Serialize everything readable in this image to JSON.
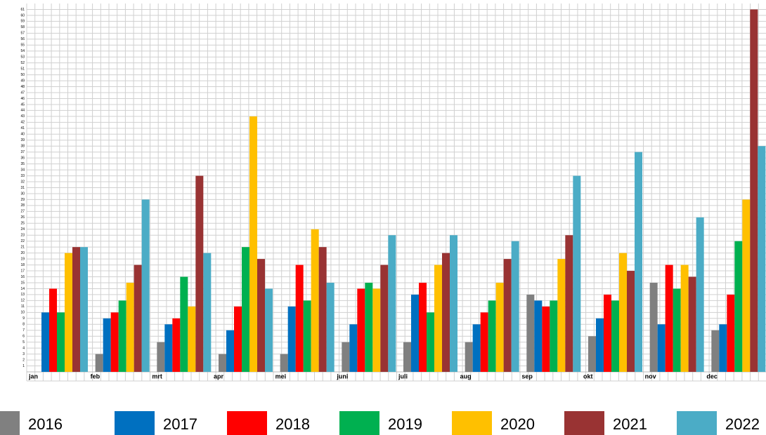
{
  "chart_data": {
    "type": "bar",
    "categories": [
      "jan",
      "feb",
      "mrt",
      "apr",
      "mei",
      "juni",
      "juli",
      "aug",
      "sep",
      "okt",
      "nov",
      "dec"
    ],
    "series": [
      {
        "name": "2016",
        "color": "#808080",
        "values": [
          null,
          3,
          5,
          3,
          3,
          5,
          5,
          5,
          13,
          6,
          15,
          7
        ]
      },
      {
        "name": "2017",
        "color": "#0070c0",
        "values": [
          10,
          9,
          8,
          7,
          11,
          8,
          13,
          8,
          12,
          9,
          8,
          8
        ]
      },
      {
        "name": "2018",
        "color": "#ff0000",
        "values": [
          14,
          10,
          9,
          11,
          18,
          14,
          15,
          10,
          11,
          13,
          18,
          13
        ]
      },
      {
        "name": "2019",
        "color": "#00b050",
        "values": [
          10,
          12,
          16,
          21,
          12,
          15,
          10,
          12,
          12,
          12,
          14,
          22
        ]
      },
      {
        "name": "2020",
        "color": "#ffc000",
        "values": [
          20,
          15,
          11,
          43,
          24,
          14,
          18,
          15,
          19,
          20,
          18,
          29
        ]
      },
      {
        "name": "2021",
        "color": "#993333",
        "values": [
          21,
          18,
          33,
          19,
          21,
          18,
          20,
          19,
          23,
          17,
          16,
          61
        ]
      },
      {
        "name": "2022",
        "color": "#4bacc6",
        "values": [
          21,
          29,
          20,
          14,
          15,
          23,
          23,
          22,
          33,
          37,
          26,
          38
        ]
      }
    ],
    "ylim": [
      0,
      62
    ],
    "yticks": [
      1,
      2,
      3,
      4,
      5,
      6,
      7,
      8,
      9,
      10,
      11,
      12,
      13,
      14,
      15,
      16,
      17,
      18,
      19,
      20,
      21,
      22,
      23,
      24,
      25,
      26,
      27,
      28,
      29,
      30,
      31,
      32,
      33,
      34,
      35,
      36,
      37,
      38,
      39,
      40,
      41,
      42,
      43,
      44,
      45,
      46,
      47,
      48,
      49,
      50,
      51,
      52,
      53,
      54,
      55,
      56,
      57,
      58,
      59,
      60,
      61
    ],
    "grid": true
  }
}
